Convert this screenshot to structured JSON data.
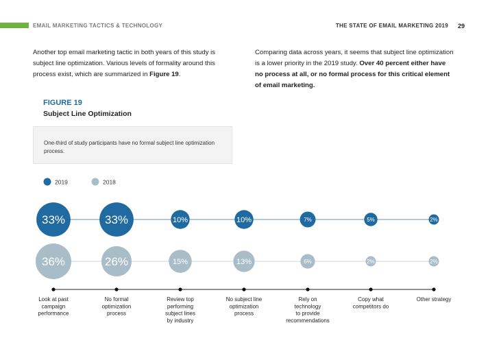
{
  "header": {
    "section": "EMAIL MARKETING TACTICS & TECHNOLOGY",
    "report": "THE STATE OF EMAIL MARKETING 2019",
    "page": "29"
  },
  "body": {
    "left_para": "Another top email marketing tactic in both years of this study is subject line optimization. Various levels of formality around this process exist, which are summarized in ",
    "left_para_ref": "Figure 19",
    "left_para_end": ".",
    "right_para": "Comparing data across years, it seems that subject line optimization is a lower priority in the 2019 study. ",
    "right_para_bold": "Over 40 percent either have no process at all, or no formal process for this critical element of email marketing."
  },
  "figure": {
    "label": "FIGURE 19",
    "title": "Subject Line Optimization",
    "callout": "One-third of study participants have no formal subject line optimization process."
  },
  "colors": {
    "series_2019": "#1f6aa0",
    "series_2018": "#a9bdc9",
    "accent_green": "#6cb33f"
  },
  "chart_data": {
    "type": "bubble",
    "categories": [
      [
        "Look at past",
        "campaign",
        "performance"
      ],
      [
        "No formal",
        "optimization",
        "process"
      ],
      [
        "Review top",
        "performing",
        "subject lines",
        "by industry"
      ],
      [
        "No subject line",
        "optimization",
        "process"
      ],
      [
        "Rely on",
        "technology",
        "to provide",
        "recommendations"
      ],
      [
        "Copy what",
        "competitors do"
      ],
      [
        "Other strategy"
      ]
    ],
    "series": [
      {
        "name": "2019",
        "values": [
          33,
          33,
          10,
          10,
          7,
          5,
          2
        ],
        "labels": [
          "33%",
          "33%",
          "10%",
          "10%",
          "7%",
          "5%",
          "2%"
        ]
      },
      {
        "name": "2018",
        "values": [
          36,
          26,
          15,
          13,
          6,
          2,
          2
        ],
        "labels": [
          "36%",
          "26%",
          "15%",
          "13%",
          "6%",
          "2%",
          "2%"
        ]
      }
    ],
    "unit": "%",
    "legend_placement": "top-left"
  }
}
